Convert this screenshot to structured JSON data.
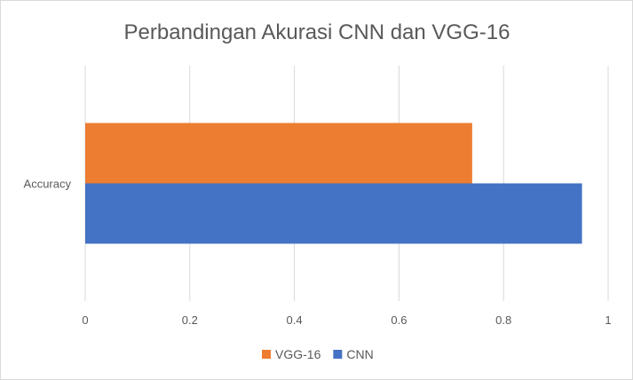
{
  "chart_data": {
    "type": "bar",
    "orientation": "horizontal",
    "title": "Perbandingan Akurasi CNN dan VGG-16",
    "xlabel": "",
    "ylabel": "",
    "categories": [
      "Accuracy"
    ],
    "series": [
      {
        "name": "CNN",
        "values": [
          0.95
        ],
        "color": "#4472C4"
      },
      {
        "name": "VGG-16",
        "values": [
          0.74
        ],
        "color": "#ED7D31"
      }
    ],
    "xlim": [
      0,
      1
    ],
    "xticks": [
      "0",
      "0.2",
      "0.4",
      "0.6",
      "0.8",
      "1"
    ],
    "grid": true,
    "legend_position": "bottom",
    "legend_order": [
      "VGG-16",
      "CNN"
    ]
  }
}
